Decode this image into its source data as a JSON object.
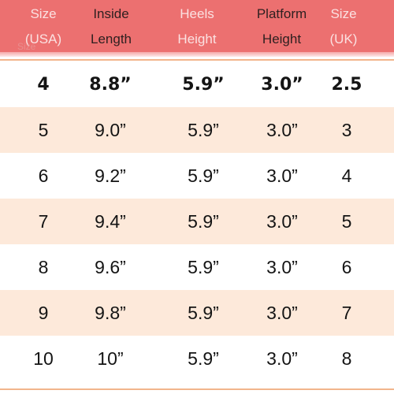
{
  "header": {
    "ghost_label": "Size",
    "columns": [
      {
        "line1": "Size",
        "line2": "(USA)"
      },
      {
        "line1": "Inside",
        "line2": "Length"
      },
      {
        "line1": "Heels",
        "line2": "Height"
      },
      {
        "line1": "Platform",
        "line2": "Height"
      },
      {
        "line1": "Size",
        "line2": "(UK)"
      }
    ]
  },
  "rows": [
    [
      "4",
      "8.8”",
      "5.9”",
      "3.0”",
      "2.5"
    ],
    [
      "5",
      "9.0”",
      "5.9”",
      "3.0”",
      "3"
    ],
    [
      "6",
      "9.2”",
      "5.9”",
      "3.0”",
      "4"
    ],
    [
      "7",
      "9.4”",
      "5.9”",
      "3.0”",
      "5"
    ],
    [
      "8",
      "9.6”",
      "5.9”",
      "3.0”",
      "6"
    ],
    [
      "9",
      "9.8”",
      "5.9”",
      "3.0”",
      "7"
    ],
    [
      "10",
      "10”",
      "5.9”",
      "3.0”",
      "8"
    ]
  ],
  "colors": {
    "header_background": "#ec7070",
    "header_text": "#fbe1e1",
    "alternate_row": "#fde9da",
    "rule": "#f2b58c",
    "body_text": "#141414"
  }
}
